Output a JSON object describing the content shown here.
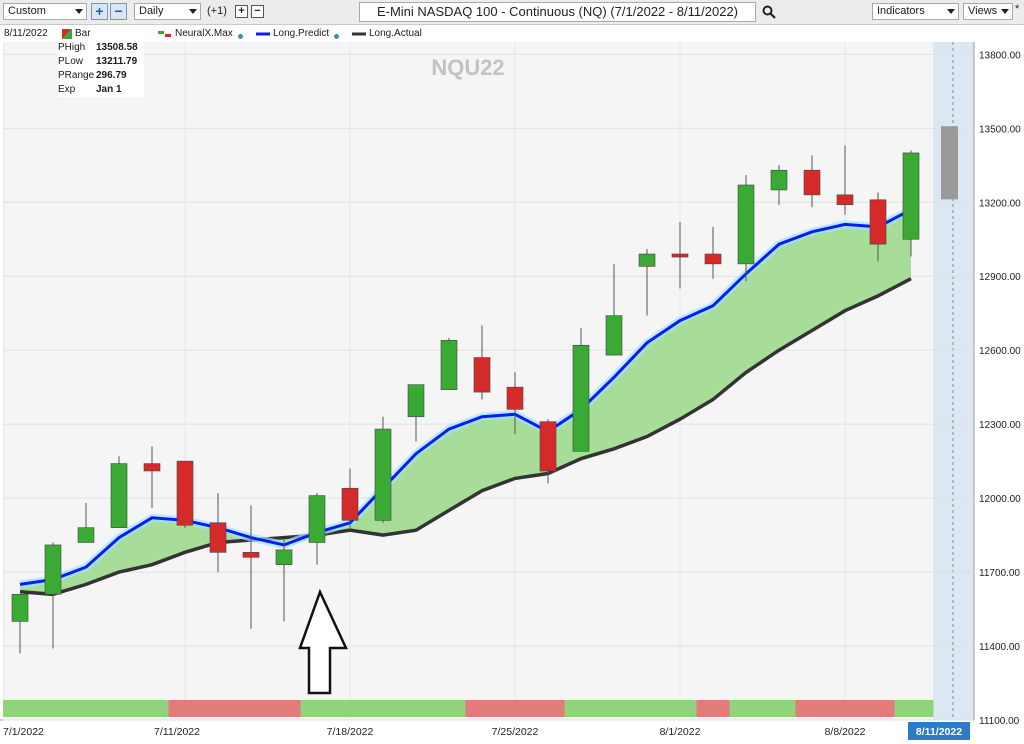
{
  "toolbar": {
    "period_select": "Custom",
    "interval_select": "Daily",
    "offset_label": "(+1)",
    "chart_title": "E-Mini NASDAQ 100 - Continuous (NQ) (7/1/2022 - 8/11/2022)",
    "indicators_label": "Indicators",
    "views_label": "Views",
    "views_marker": "*"
  },
  "legend": {
    "date": "8/11/2022",
    "bar": "Bar",
    "neuralx": "NeuralX.Max",
    "long_predict": "Long.Predict",
    "long_actual": "Long.Actual"
  },
  "info": {
    "rows": [
      {
        "k": "PHigh",
        "v": "13508.58"
      },
      {
        "k": "PLow",
        "v": "13211.79"
      },
      {
        "k": "PRange",
        "v": "296.79"
      },
      {
        "k": "Exp",
        "v": "Jan 1"
      }
    ]
  },
  "colors": {
    "up": "#3aaa35",
    "down": "#d42a2a",
    "predict": "#0a1df0",
    "actual": "#333333",
    "fill": "#9fd98f",
    "strip_green": "#8fd37a",
    "strip_red": "#e37b7b",
    "forecast": "#9a9a9a"
  },
  "chart_data": {
    "type": "candlestick",
    "title": "NQU22",
    "ylim": [
      11100,
      13850
    ],
    "y_ticks": [
      "13800.00",
      "13500.00",
      "13200.00",
      "12900.00",
      "12600.00",
      "12300.00",
      "12000.00",
      "11700.00",
      "11400.00",
      "11100.00"
    ],
    "x_ticks": [
      "7/1/2022",
      "7/11/2022",
      "7/18/2022",
      "7/25/2022",
      "8/1/2022",
      "8/8/2022"
    ],
    "last_date": "8/11/2022",
    "candles": [
      {
        "o": 11500,
        "h": 11610,
        "l": 11370,
        "c": 11610
      },
      {
        "o": 11610,
        "h": 11820,
        "l": 11390,
        "c": 11810
      },
      {
        "o": 11820,
        "h": 11980,
        "l": 11820,
        "c": 11880
      },
      {
        "o": 11880,
        "h": 12170,
        "l": 11880,
        "c": 12140
      },
      {
        "o": 12140,
        "h": 12210,
        "l": 11960,
        "c": 12110
      },
      {
        "o": 12150,
        "h": 12150,
        "l": 11880,
        "c": 11890
      },
      {
        "o": 11900,
        "h": 12020,
        "l": 11700,
        "c": 11780
      },
      {
        "o": 11780,
        "h": 11970,
        "l": 11470,
        "c": 11760
      },
      {
        "o": 11730,
        "h": 11830,
        "l": 11500,
        "c": 11790
      },
      {
        "o": 11820,
        "h": 12020,
        "l": 11730,
        "c": 12010
      },
      {
        "o": 12040,
        "h": 12120,
        "l": 11880,
        "c": 11910
      },
      {
        "o": 11910,
        "h": 12330,
        "l": 11900,
        "c": 12280
      },
      {
        "o": 12330,
        "h": 12460,
        "l": 12230,
        "c": 12460
      },
      {
        "o": 12440,
        "h": 12650,
        "l": 12440,
        "c": 12640
      },
      {
        "o": 12570,
        "h": 12700,
        "l": 12400,
        "c": 12430
      },
      {
        "o": 12450,
        "h": 12510,
        "l": 12260,
        "c": 12360
      },
      {
        "o": 12310,
        "h": 12320,
        "l": 12060,
        "c": 12110
      },
      {
        "o": 12190,
        "h": 12690,
        "l": 12190,
        "c": 12620
      },
      {
        "o": 12580,
        "h": 12950,
        "l": 12580,
        "c": 12740
      },
      {
        "o": 12940,
        "h": 13010,
        "l": 12740,
        "c": 12990
      },
      {
        "o": 12990,
        "h": 13120,
        "l": 12850,
        "c": 12980
      },
      {
        "o": 12990,
        "h": 13100,
        "l": 12890,
        "c": 12950
      },
      {
        "o": 12950,
        "h": 13310,
        "l": 12880,
        "c": 13270
      },
      {
        "o": 13250,
        "h": 13350,
        "l": 13190,
        "c": 13330
      },
      {
        "o": 13330,
        "h": 13390,
        "l": 13180,
        "c": 13230
      },
      {
        "o": 13230,
        "h": 13430,
        "l": 13150,
        "c": 13190
      },
      {
        "o": 13210,
        "h": 13240,
        "l": 12960,
        "c": 13030
      },
      {
        "o": 13050,
        "h": 13410,
        "l": 12980,
        "c": 13400
      }
    ],
    "series": [
      {
        "name": "Long.Predict",
        "values": [
          11650,
          11670,
          11720,
          11840,
          11920,
          11910,
          11880,
          11840,
          11810,
          11860,
          11900,
          12040,
          12180,
          12280,
          12330,
          12340,
          12270,
          12360,
          12490,
          12630,
          12720,
          12780,
          12910,
          13030,
          13080,
          13110,
          13100,
          13170
        ]
      },
      {
        "name": "Long.Actual",
        "values": [
          11620,
          11610,
          11650,
          11700,
          11730,
          11780,
          11820,
          11830,
          11840,
          11850,
          11870,
          11850,
          11870,
          11950,
          12030,
          12080,
          12100,
          12160,
          12200,
          12250,
          12320,
          12400,
          12510,
          12600,
          12680,
          12760,
          12820,
          12890
        ]
      }
    ],
    "forecast_range": [
      13211.79,
      13508.58
    ],
    "signal_strip": [
      "g",
      "g",
      "g",
      "g",
      "g",
      "r",
      "r",
      "r",
      "r",
      "g",
      "g",
      "g",
      "g",
      "g",
      "r",
      "r",
      "r",
      "g",
      "g",
      "g",
      "g",
      "r",
      "g",
      "g",
      "r",
      "r",
      "r",
      "g"
    ]
  }
}
